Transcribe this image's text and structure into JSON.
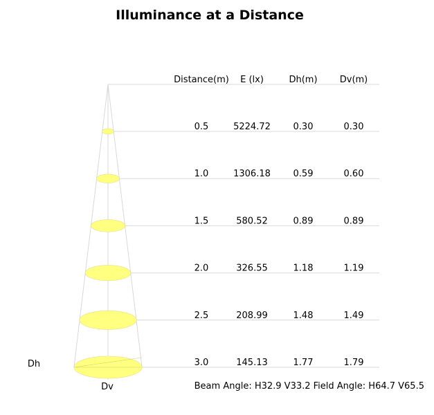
{
  "chart_data": {
    "type": "table",
    "title": "Illuminance at a Distance",
    "columns": [
      "Distance(m)",
      "E (lx)",
      "Dh(m)",
      "Dv(m)"
    ],
    "rows": [
      {
        "distance": "0.5",
        "e": "5224.72",
        "dh": "0.30",
        "dv": "0.30"
      },
      {
        "distance": "1.0",
        "e": "1306.18",
        "dh": "0.59",
        "dv": "0.60"
      },
      {
        "distance": "1.5",
        "e": "580.52",
        "dh": "0.89",
        "dv": "0.89"
      },
      {
        "distance": "2.0",
        "e": "326.55",
        "dh": "1.18",
        "dv": "1.19"
      },
      {
        "distance": "2.5",
        "e": "208.99",
        "dh": "1.48",
        "dv": "1.49"
      },
      {
        "distance": "3.0",
        "e": "145.13",
        "dh": "1.77",
        "dv": "1.79"
      }
    ],
    "dh_label": "Dh",
    "dv_label": "Dv",
    "footer": "Beam Angle: H32.9 V33.2  Field Angle: H64.7 V65.5",
    "colors": {
      "ellipse_fill": "#ffff80",
      "line": "#d9d9d9",
      "text": "#000000"
    }
  }
}
